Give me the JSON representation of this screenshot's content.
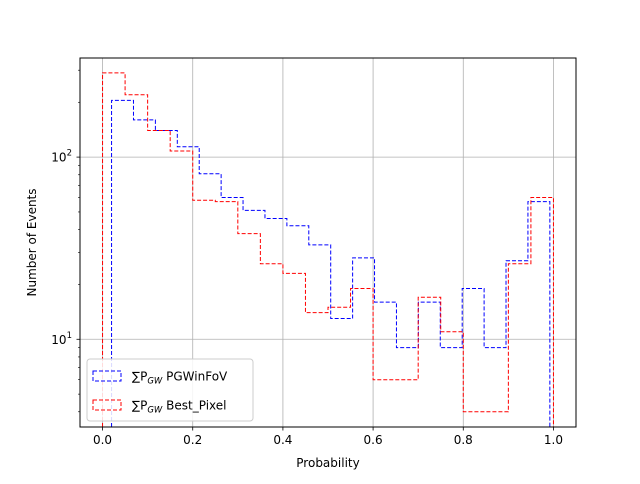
{
  "chart_data": {
    "type": "histogram",
    "xlabel": "Probability",
    "ylabel": "Number of Events",
    "yscale": "log",
    "xlim": [
      -0.05,
      1.05
    ],
    "ylim": [
      3.3,
      350
    ],
    "grid": true,
    "legend_position": "lower-left",
    "x_ticks": [
      {
        "value": 0.0,
        "label": "0.0"
      },
      {
        "value": 0.2,
        "label": "0.2"
      },
      {
        "value": 0.4,
        "label": "0.4"
      },
      {
        "value": 0.6,
        "label": "0.6"
      },
      {
        "value": 0.8,
        "label": "0.8"
      },
      {
        "value": 1.0,
        "label": "1.0"
      }
    ],
    "y_ticks": [
      {
        "value": 10,
        "base": "10",
        "exp": "1"
      },
      {
        "value": 100,
        "base": "10",
        "exp": "2"
      }
    ],
    "series": [
      {
        "legend_sum": "∑P",
        "legend_sub": "GW",
        "legend_rest": " PGWinFoV",
        "color": "#0000ff",
        "bin_edges": [
          0.02,
          0.0686,
          0.1172,
          0.1658,
          0.2144,
          0.263,
          0.3116,
          0.3602,
          0.4088,
          0.4574,
          0.506,
          0.5546,
          0.6032,
          0.6518,
          0.7004,
          0.749,
          0.7976,
          0.8462,
          0.8948,
          0.9434,
          0.992
        ],
        "counts": [
          205,
          160,
          140,
          114,
          81,
          60,
          51,
          46,
          42,
          33,
          13,
          28,
          16,
          9,
          16,
          9,
          19,
          9,
          27,
          57
        ]
      },
      {
        "legend_sum": "∑P",
        "legend_sub": "GW",
        "legend_rest": " Best_Pixel",
        "color": "#ff0000",
        "bin_edges": [
          0.0,
          0.05,
          0.1,
          0.15,
          0.2,
          0.25,
          0.3,
          0.35,
          0.4,
          0.45,
          0.5,
          0.55,
          0.6,
          0.65,
          0.7,
          0.75,
          0.8,
          0.85,
          0.9,
          0.95,
          1.0
        ],
        "counts": [
          290,
          220,
          140,
          108,
          58,
          57,
          38,
          26,
          23,
          14,
          15,
          19,
          6,
          6,
          17,
          11,
          4,
          4,
          26,
          60
        ]
      }
    ]
  }
}
